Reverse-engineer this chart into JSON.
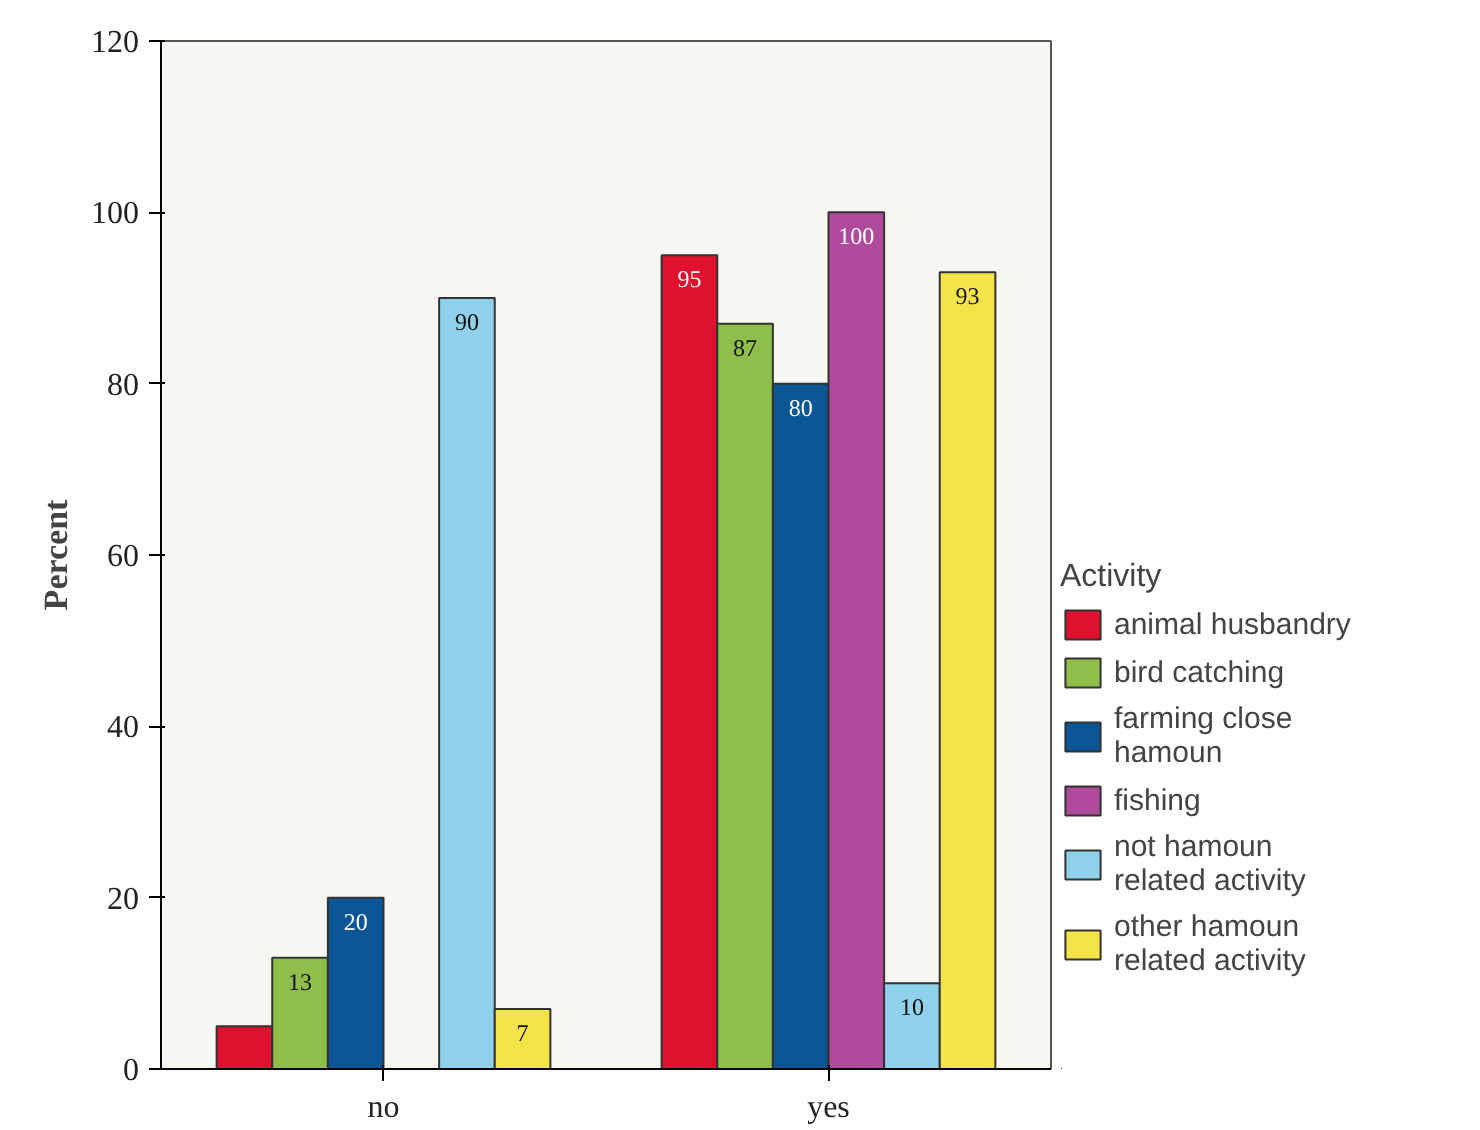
{
  "chart_data": {
    "type": "bar",
    "ylabel": "Percent",
    "legend_title": "Activity",
    "legend": "right",
    "categories": [
      "no",
      "yes"
    ],
    "ylim": [
      0,
      120
    ],
    "yticks": [
      0,
      20,
      40,
      60,
      80,
      100,
      120
    ],
    "grid": false,
    "series": [
      {
        "name": "animal husbandry",
        "color": "#e0102f",
        "values": [
          5,
          95
        ],
        "value_labels": [
          null,
          "95"
        ]
      },
      {
        "name": "bird catching",
        "color": "#8fbe4a",
        "values": [
          13,
          87
        ],
        "value_labels": [
          "13",
          "87"
        ]
      },
      {
        "name": "farming close hamoun",
        "color": "#0a5596",
        "values": [
          20,
          80
        ],
        "value_labels": [
          "20",
          "80"
        ]
      },
      {
        "name": "fishing",
        "color": "#b04a9c",
        "values": [
          null,
          100
        ],
        "value_labels": [
          null,
          "100"
        ]
      },
      {
        "name": "not hamoun related activity",
        "color": "#8fd0ea",
        "values": [
          90,
          10
        ],
        "value_labels": [
          "90",
          "10"
        ]
      },
      {
        "name": "other hamoun related activity",
        "color": "#f5e34a",
        "values": [
          7,
          93
        ],
        "value_labels": [
          "7",
          "93"
        ]
      }
    ]
  }
}
